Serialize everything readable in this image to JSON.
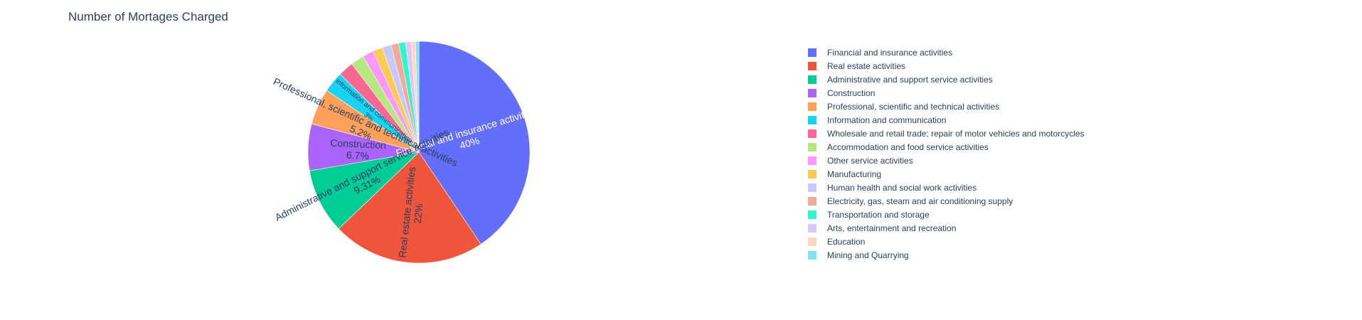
{
  "chart_data": {
    "type": "pie",
    "title": "Number of Mortages Charged",
    "categories": [
      "Financial and insurance activities",
      "Real estate activities",
      "Administrative and support service activities",
      "Construction",
      "Professional, scientific and technical activities",
      "Information and communication",
      "Wholesale and retail trade; repair of motor vehicles and motorcycles",
      "Accommodation and food service activities",
      "Other service activities",
      "Manufacturing",
      "Human health and social work activities",
      "Electricity, gas, steam and air conditioning supply",
      "Transportation and storage",
      "Arts, entertainment and recreation",
      "Education",
      "Mining and Quarrying"
    ],
    "values": [
      40,
      22,
      9.31,
      6.7,
      5.2,
      3.0,
      2.2,
      1.9,
      1.6,
      1.4,
      1.3,
      1.1,
      1.0,
      0.8,
      0.6,
      0.5
    ],
    "slice_labels": [
      {
        "name": "Financial and insurance activities",
        "pct": "40%"
      },
      {
        "name": "Real estate activities",
        "pct": "22%"
      },
      {
        "name": "Administrative and support service activities",
        "pct": "9.31%"
      },
      {
        "name": "Construction",
        "pct": "6.7%"
      },
      {
        "name": "Professional, scientific and technical activities",
        "pct": "5.2%"
      },
      {
        "name": "Information and communication",
        "pct": "3%"
      }
    ],
    "colors": [
      "#636efa",
      "#ef553b",
      "#00cc96",
      "#ab63fa",
      "#ffa15a",
      "#19d3f3",
      "#ff6692",
      "#b6e880",
      "#ff97ff",
      "#fecb52",
      "#c6cafa",
      "#f3a99a",
      "#33f5c9",
      "#dcc6fa",
      "#ffd8c2",
      "#80e3f5"
    ],
    "label_colors": [
      "#ffffff",
      "#2a3f5f",
      "#2a3f5f",
      "#2a3f5f",
      "#2a3f5f",
      "#2a3f5f"
    ],
    "legend_position": "right"
  }
}
